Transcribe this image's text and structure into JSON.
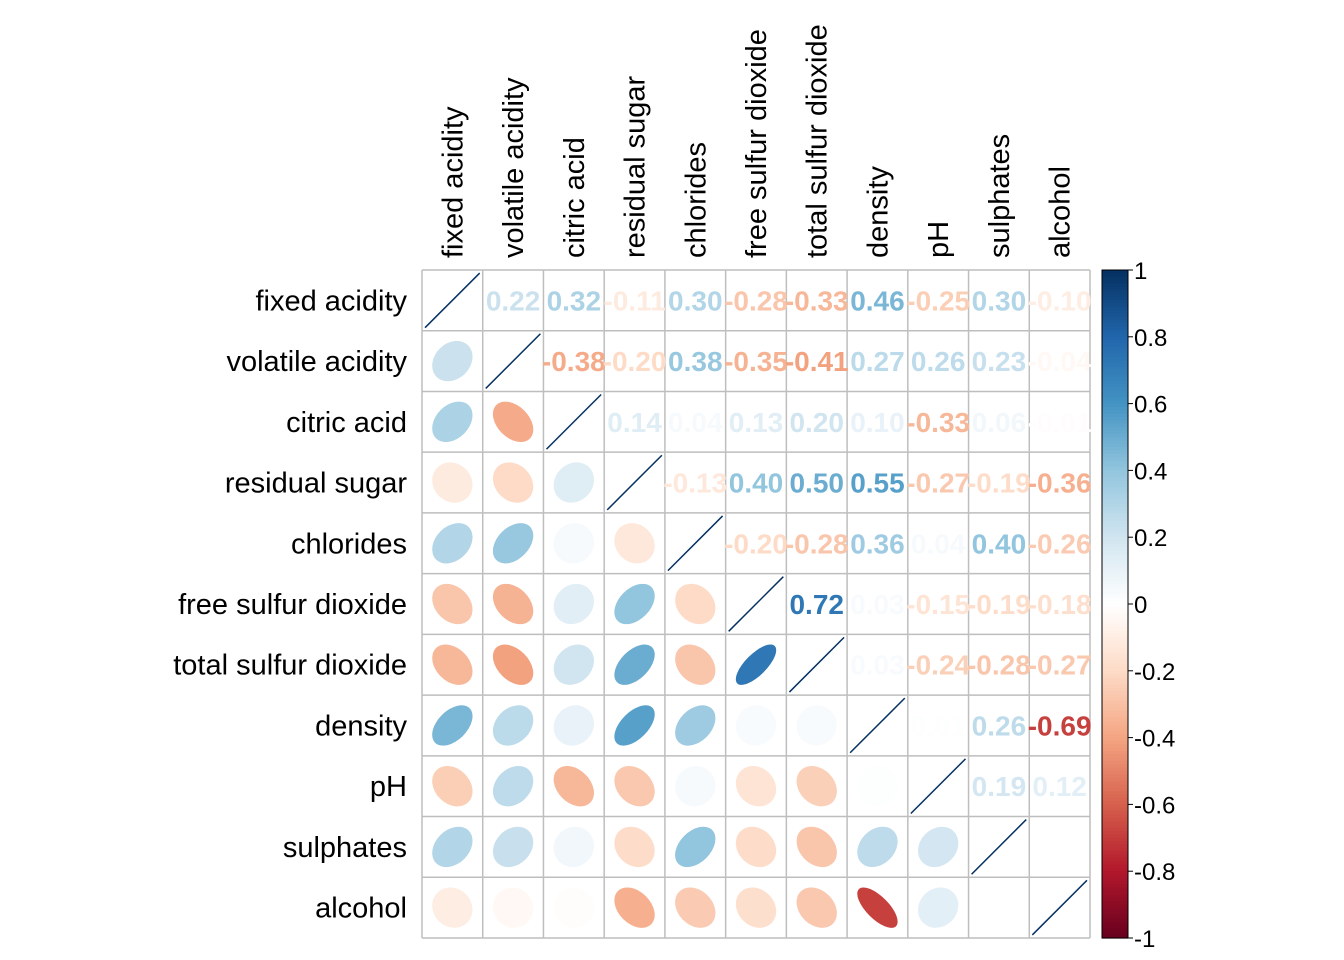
{
  "chart_data": {
    "type": "heatmap",
    "subtype": "correlation-matrix-mixed",
    "lower_method": "ellipse",
    "upper_method": "number",
    "variables": [
      "fixed acidity",
      "volatile acidity",
      "citric acid",
      "residual sugar",
      "chlorides",
      "free sulfur dioxide",
      "total sulfur dioxide",
      "density",
      "pH",
      "sulphates",
      "alcohol"
    ],
    "matrix": [
      [
        1,
        0.22,
        0.32,
        -0.11,
        0.3,
        -0.28,
        -0.33,
        0.46,
        -0.25,
        0.3,
        -0.1
      ],
      [
        0.22,
        1,
        -0.38,
        -0.2,
        0.38,
        -0.35,
        -0.41,
        0.27,
        0.26,
        0.23,
        -0.04
      ],
      [
        0.32,
        -0.38,
        1,
        0.14,
        0.04,
        0.13,
        0.2,
        0.1,
        -0.33,
        0.06,
        -0.01
      ],
      [
        -0.11,
        -0.2,
        0.14,
        1,
        -0.13,
        0.4,
        0.5,
        0.55,
        -0.27,
        -0.19,
        -0.36
      ],
      [
        0.3,
        0.38,
        0.04,
        -0.13,
        1,
        -0.2,
        -0.28,
        0.36,
        0.04,
        0.4,
        -0.26
      ],
      [
        -0.28,
        -0.35,
        0.13,
        0.4,
        -0.2,
        1,
        0.72,
        0.03,
        -0.15,
        -0.19,
        -0.18
      ],
      [
        -0.33,
        -0.41,
        0.2,
        0.5,
        -0.28,
        0.72,
        1,
        0.03,
        -0.24,
        -0.28,
        -0.27
      ],
      [
        0.46,
        0.27,
        0.1,
        0.55,
        0.36,
        0.03,
        0.03,
        1,
        0.01,
        0.26,
        -0.69
      ],
      [
        -0.25,
        0.26,
        -0.33,
        -0.27,
        0.04,
        -0.15,
        -0.24,
        0.01,
        1,
        0.19,
        0.12
      ],
      [
        0.3,
        0.23,
        0.06,
        -0.19,
        0.4,
        -0.19,
        -0.28,
        0.26,
        0.19,
        1,
        -0.0
      ],
      [
        -0.1,
        -0.04,
        -0.01,
        -0.36,
        -0.26,
        -0.18,
        -0.27,
        -0.69,
        0.12,
        -0.0,
        1
      ]
    ],
    "colorbar": {
      "range": [
        -1,
        1
      ],
      "ticks": [
        "1",
        "0.8",
        "0.6",
        "0.4",
        "0.2",
        "0",
        "-0.2",
        "-0.4",
        "-0.6",
        "-0.8",
        "-1"
      ],
      "palette": [
        "#67001F",
        "#B2182B",
        "#D6604D",
        "#F4A582",
        "#FDDBC7",
        "#FFFFFF",
        "#D1E5F0",
        "#92C5DE",
        "#4393C3",
        "#2166AC",
        "#053061"
      ]
    },
    "grid_color": "#BEBEBE"
  }
}
